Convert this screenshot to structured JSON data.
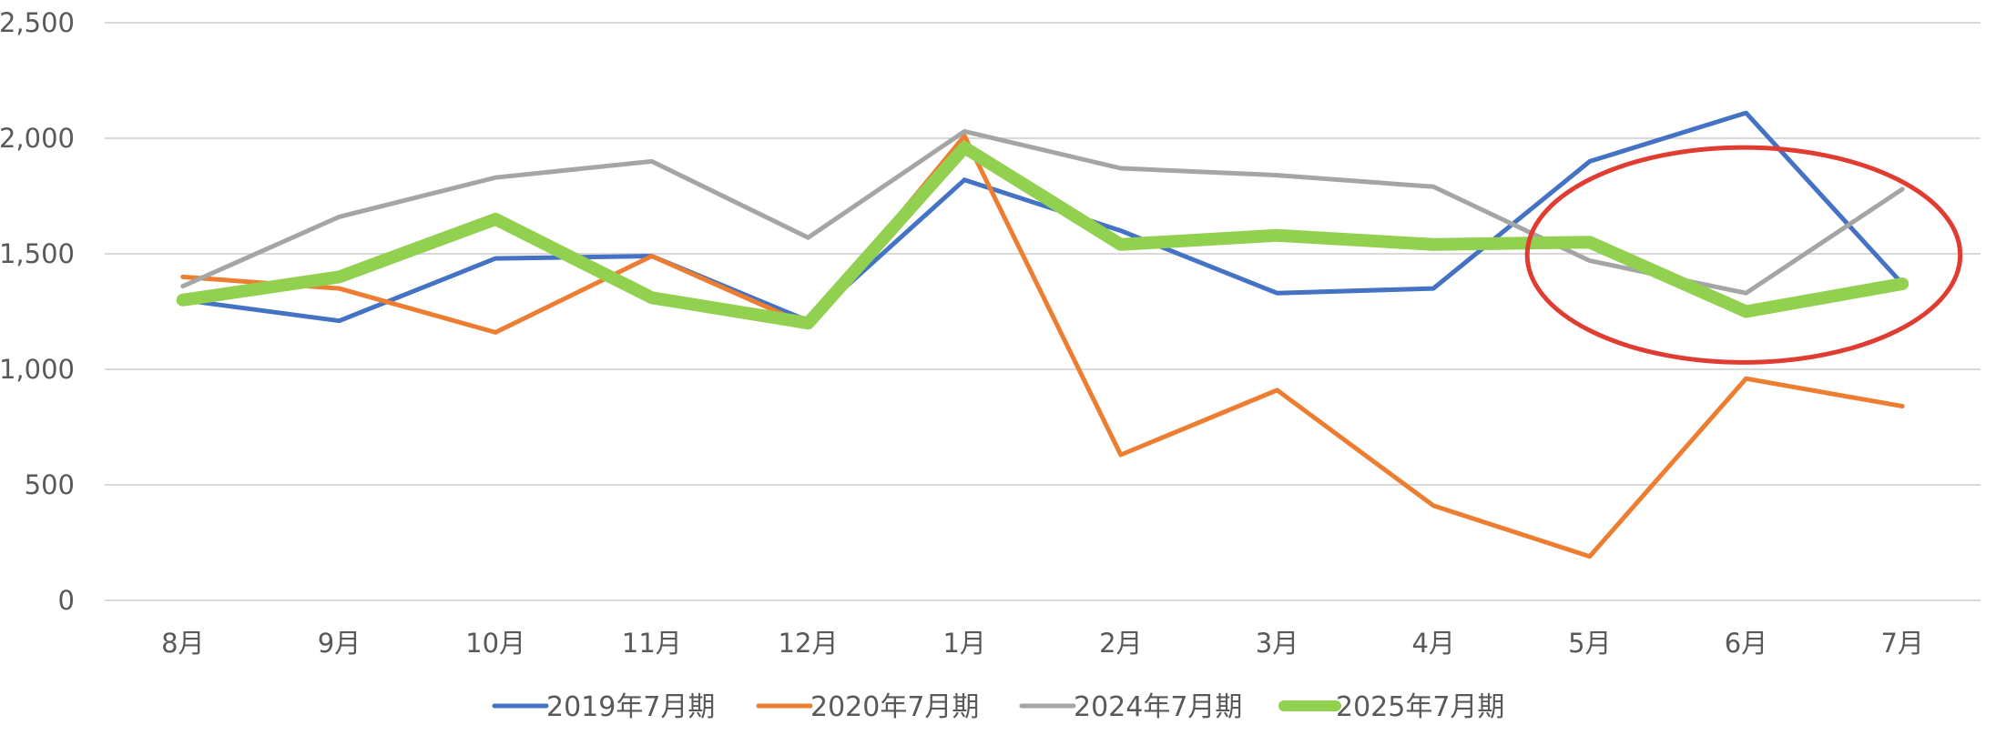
{
  "chart_data": {
    "type": "line",
    "categories": [
      "8月",
      "9月",
      "10月",
      "11月",
      "12月",
      "1月",
      "2月",
      "3月",
      "4月",
      "5月",
      "6月",
      "7月"
    ],
    "ylim": [
      0,
      2500
    ],
    "yticks": [
      0,
      500,
      1000,
      1500,
      2000,
      2500
    ],
    "ytick_labels": [
      "0",
      "500",
      "1,000",
      "1,500",
      "2,000",
      "2,500"
    ],
    "grid": true,
    "legend_position": "bottom",
    "series": [
      {
        "name": "2019年7月期",
        "color": "#4472C4",
        "emphasis": false,
        "values": [
          1300,
          1210,
          1480,
          1490,
          1210,
          1820,
          1600,
          1330,
          1350,
          1900,
          2110,
          1370
        ]
      },
      {
        "name": "2020年7月期",
        "color": "#ED7D31",
        "emphasis": false,
        "values": [
          1400,
          1350,
          1160,
          1490,
          1190,
          2010,
          630,
          910,
          410,
          190,
          960,
          840
        ]
      },
      {
        "name": "2024年7月期",
        "color": "#A5A5A5",
        "emphasis": false,
        "values": [
          1360,
          1660,
          1830,
          1900,
          1570,
          2030,
          1870,
          1840,
          1790,
          1470,
          1330,
          1780
        ]
      },
      {
        "name": "2025年7月期",
        "color": "#92D050",
        "emphasis": true,
        "values": [
          1300,
          1400,
          1650,
          1310,
          1200,
          1960,
          1540,
          1580,
          1540,
          1550,
          1250,
          1370
        ]
      }
    ],
    "annotations": [
      {
        "type": "ellipse",
        "color": "#E03C31",
        "around_categories": [
          "5月",
          "6月",
          "7月"
        ],
        "value_range": [
          1030,
          1960
        ]
      }
    ]
  }
}
